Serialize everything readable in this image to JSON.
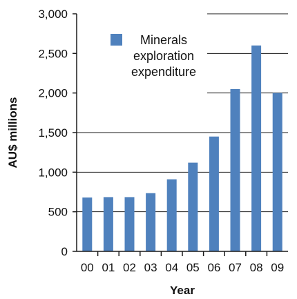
{
  "colors": {
    "bar": "#4f81bd",
    "axis": "#1a1a1a",
    "grid": "#1a1a1a",
    "text": "#111111"
  },
  "chart_data": {
    "type": "bar",
    "title": "",
    "xlabel": "Year",
    "ylabel": "AU$ millions",
    "categories": [
      "00",
      "01",
      "02",
      "03",
      "04",
      "05",
      "06",
      "07",
      "08",
      "09"
    ],
    "series": [
      {
        "name": "Minerals exploration expenditure",
        "legend_lines": [
          "Minerals",
          "exploration",
          "expenditure"
        ],
        "values": [
          680,
          685,
          685,
          735,
          910,
          1120,
          1450,
          2050,
          2600,
          2000
        ]
      }
    ],
    "ylim": [
      0,
      3000
    ],
    "yticks": [
      0,
      500,
      1000,
      1500,
      2000,
      2500,
      3000
    ],
    "ytick_labels": [
      "0",
      "500",
      "1,000",
      "1,500",
      "2,000",
      "2,500",
      "3,000"
    ],
    "grid": "horizontal",
    "legend_position": "top-left"
  }
}
